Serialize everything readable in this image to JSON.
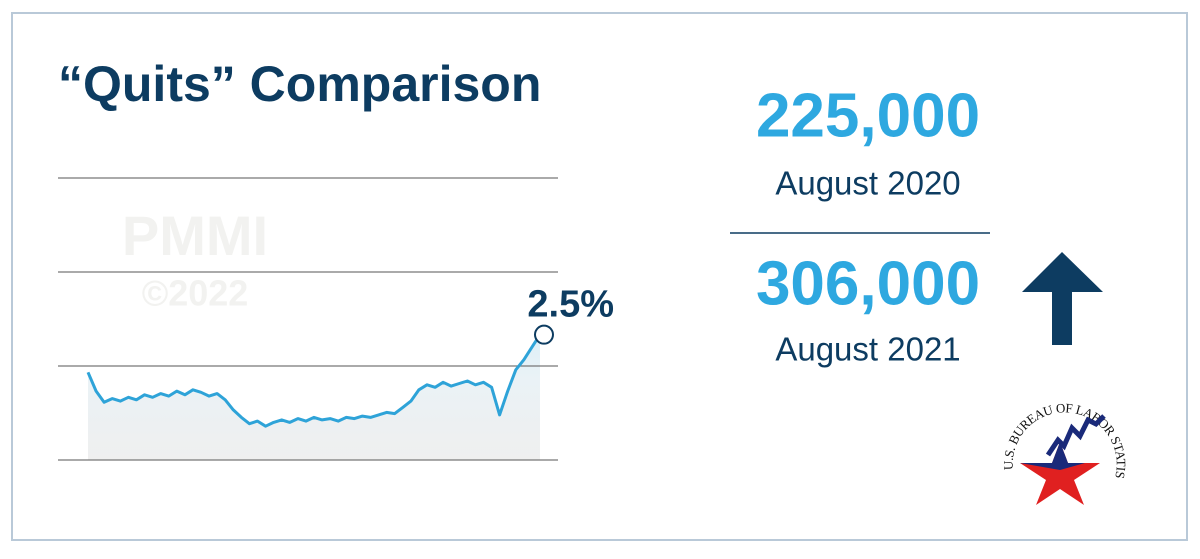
{
  "title": "“Quits” Comparison",
  "watermark": {
    "brand": "PMMI",
    "copyright": "©2022"
  },
  "chart_data": {
    "type": "line",
    "annotation": "2.5%",
    "color": "#2ea3d8",
    "values": [
      2.2,
      2.05,
      1.96,
      1.99,
      1.97,
      2.0,
      1.98,
      2.02,
      2.0,
      2.03,
      2.01,
      2.05,
      2.02,
      2.06,
      2.04,
      2.01,
      2.03,
      1.98,
      1.9,
      1.84,
      1.79,
      1.81,
      1.77,
      1.8,
      1.82,
      1.8,
      1.83,
      1.81,
      1.84,
      1.82,
      1.83,
      1.81,
      1.84,
      1.83,
      1.85,
      1.84,
      1.86,
      1.88,
      1.87,
      1.92,
      1.97,
      2.06,
      2.1,
      2.08,
      2.12,
      2.09,
      2.11,
      2.13,
      2.1,
      2.12,
      2.08,
      1.86,
      2.05,
      2.22,
      2.3,
      2.4,
      2.5
    ],
    "ylim": [
      1.5,
      3.75
    ],
    "yticks": [
      1.5,
      2.25,
      3.0,
      3.75
    ],
    "grid": true
  },
  "stats": [
    {
      "value": "225,000",
      "period": "August 2020"
    },
    {
      "value": "306,000",
      "period": "August 2021"
    }
  ],
  "logo": {
    "text": "U.S. BUREAU OF LABOR STATISTICS"
  }
}
